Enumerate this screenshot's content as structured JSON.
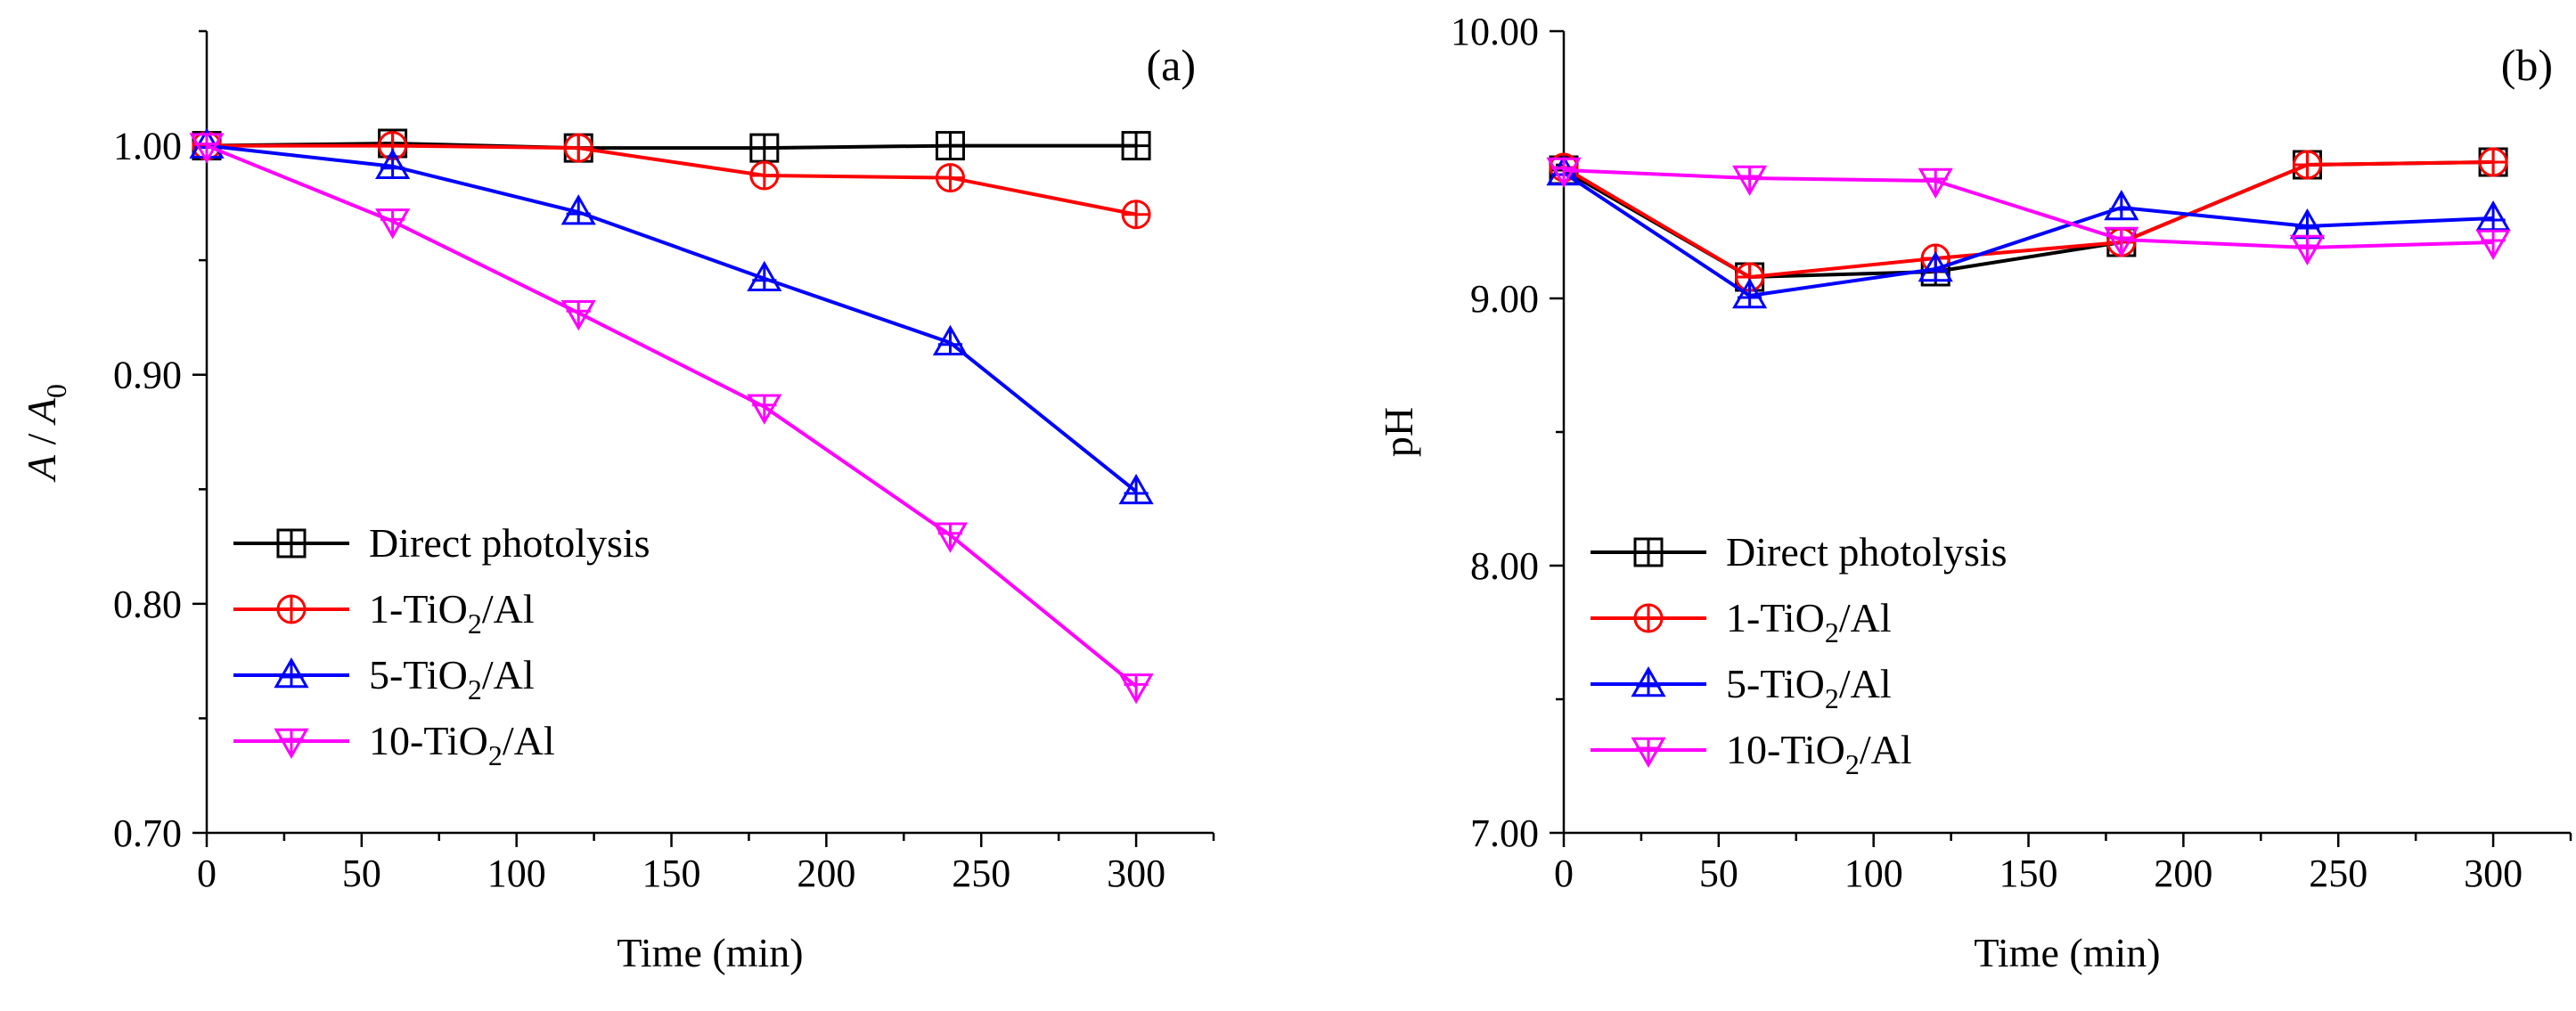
{
  "chart_data": [
    {
      "type": "line",
      "panel_label": "(a)",
      "xlabel": "Time (min)",
      "ylabel": {
        "a": "A",
        "sep": " / ",
        "b": "A",
        "sub": "0"
      },
      "xlim": [
        0,
        325
      ],
      "ylim": [
        0.7,
        1.05
      ],
      "xticks": [
        0,
        50,
        100,
        150,
        200,
        250,
        300
      ],
      "xtick_labels": [
        "0",
        "50",
        "100",
        "150",
        "200",
        "250",
        "300"
      ],
      "yticks": [
        0.7,
        0.8,
        0.9,
        1.0
      ],
      "ytick_labels": [
        "0.70",
        "0.80",
        "0.90",
        "1.00"
      ],
      "grid": false,
      "legend_position": "bottom-left",
      "x": [
        0,
        60,
        120,
        180,
        240,
        300
      ],
      "series": [
        {
          "key": "direct",
          "values": [
            1.0,
            1.001,
            0.999,
            0.999,
            1.0,
            1.0
          ]
        },
        {
          "key": "t1",
          "values": [
            1.0,
            1.0,
            0.999,
            0.987,
            0.986,
            0.97
          ]
        },
        {
          "key": "t5",
          "values": [
            1.0,
            0.991,
            0.971,
            0.942,
            0.914,
            0.849
          ]
        },
        {
          "key": "t10",
          "values": [
            1.0,
            0.967,
            0.927,
            0.886,
            0.83,
            0.764
          ]
        }
      ]
    },
    {
      "type": "line",
      "panel_label": "(b)",
      "xlabel": "Time (min)",
      "ylabel": {
        "text": "pH"
      },
      "xlim": [
        0,
        325
      ],
      "ylim": [
        7.0,
        10.0
      ],
      "xticks": [
        0,
        50,
        100,
        150,
        200,
        250,
        300
      ],
      "xtick_labels": [
        "0",
        "50",
        "100",
        "150",
        "200",
        "250",
        "300"
      ],
      "yticks": [
        7.0,
        8.0,
        9.0,
        10.0
      ],
      "ytick_labels": [
        "7.00",
        "8.00",
        "9.00",
        "10.00"
      ],
      "grid": false,
      "legend_position": "bottom-left",
      "x": [
        0,
        60,
        120,
        180,
        240,
        300
      ],
      "series": [
        {
          "key": "direct",
          "values": [
            9.48,
            9.08,
            9.1,
            9.21,
            9.5,
            9.51
          ]
        },
        {
          "key": "t1",
          "values": [
            9.49,
            9.08,
            9.15,
            9.21,
            9.5,
            9.51
          ]
        },
        {
          "key": "t5",
          "values": [
            9.47,
            9.01,
            9.11,
            9.34,
            9.27,
            9.3
          ]
        },
        {
          "key": "t10",
          "values": [
            9.48,
            9.45,
            9.44,
            9.22,
            9.19,
            9.21
          ]
        }
      ]
    }
  ],
  "legend": [
    {
      "key": "direct",
      "parts": [
        "Direct photolysis"
      ],
      "color": "#000000",
      "marker": "square"
    },
    {
      "key": "t1",
      "parts": [
        "1-TiO",
        "2",
        "/Al"
      ],
      "color": "#ff0000",
      "marker": "circle"
    },
    {
      "key": "t5",
      "parts": [
        "5-TiO",
        "2",
        "/Al"
      ],
      "color": "#0000ff",
      "marker": "triangle-up"
    },
    {
      "key": "t10",
      "parts": [
        "10-TiO",
        "2",
        "/Al"
      ],
      "color": "#ff00ff",
      "marker": "triangle-down"
    }
  ]
}
